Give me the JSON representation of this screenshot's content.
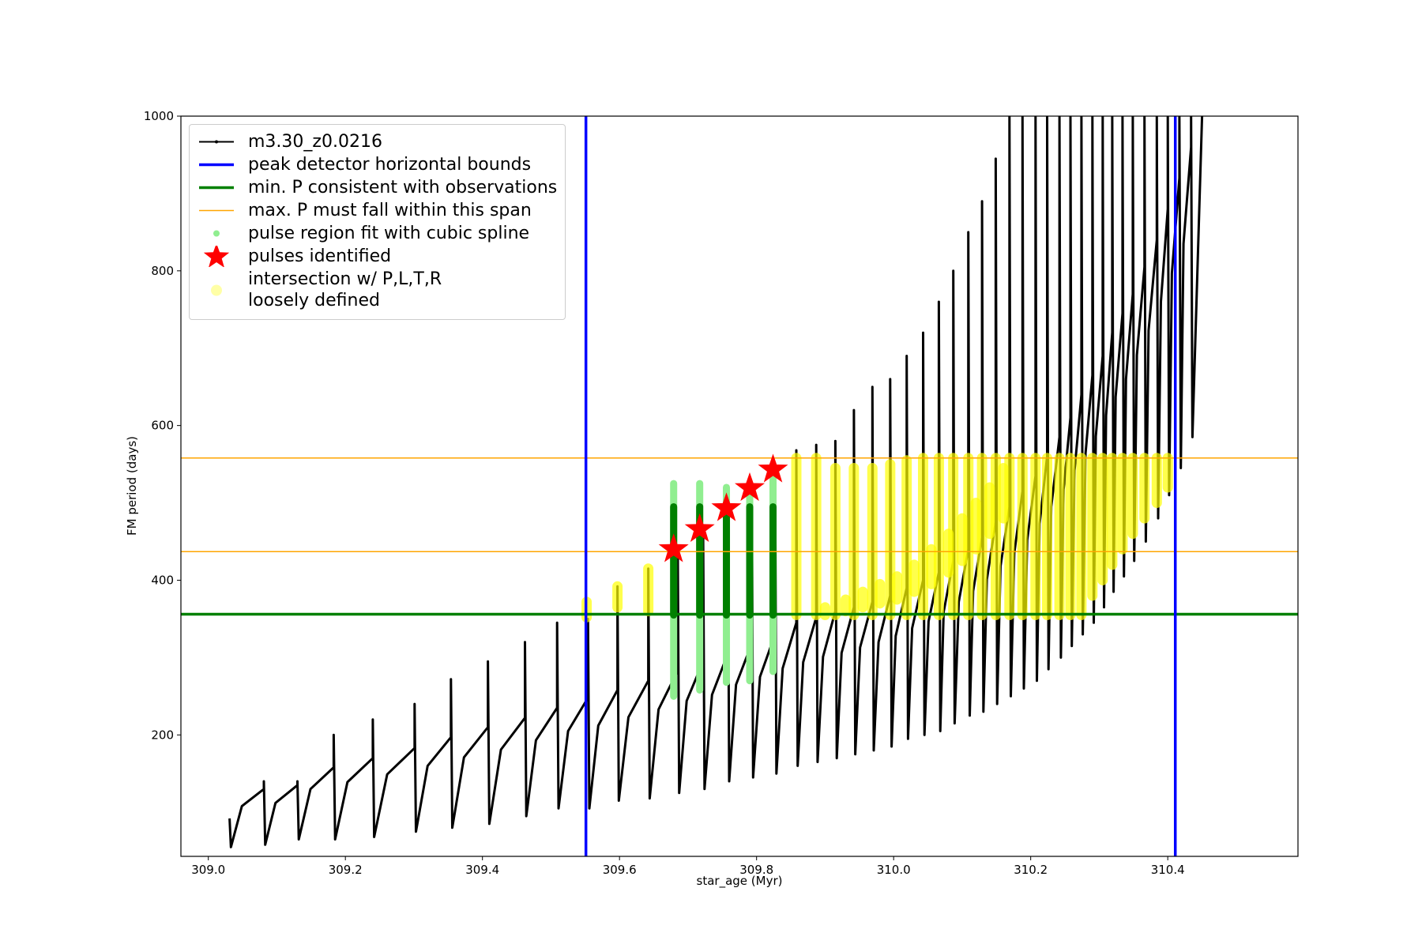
{
  "chart_data": {
    "type": "line",
    "xlabel": "star_age (Myr)",
    "ylabel": "FM period (days)",
    "xlim": [
      308.96,
      310.59
    ],
    "ylim": [
      43,
      1000
    ],
    "xticks": [
      {
        "value": 309,
        "label": "309.0"
      },
      309.2,
      309.4,
      309.6,
      309.8,
      {
        "value": 310,
        "label": "310.0"
      },
      310.2,
      310.4
    ],
    "yticks": [
      200,
      400,
      600,
      800,
      1000
    ],
    "grid": false,
    "legend": "upper left",
    "series": [
      {
        "name": "m3.30_z0.0216",
        "type": "line",
        "color": "#000000",
        "x": [
          309.031,
          309.033,
          309.049,
          309.081,
          309.081,
          309.083,
          309.098,
          309.13,
          309.13,
          309.132,
          309.149,
          309.183,
          309.183,
          309.185,
          309.203,
          309.24,
          309.24,
          309.242,
          309.261,
          309.301,
          309.301,
          309.303,
          309.32,
          309.354,
          309.354,
          309.356,
          309.373,
          309.408,
          309.408,
          309.41,
          309.427,
          309.462,
          309.462,
          309.464,
          309.478,
          309.509,
          309.509,
          309.511,
          309.525,
          309.554,
          309.554,
          309.556,
          309.569,
          309.597,
          309.597,
          309.599,
          309.613,
          309.642,
          309.642,
          309.644,
          309.657,
          309.685,
          309.685,
          309.687,
          309.698,
          309.722,
          309.722,
          309.724,
          309.735,
          309.758,
          309.758,
          309.76,
          309.77,
          309.793,
          309.793,
          309.795,
          309.805,
          309.827,
          309.827,
          309.829,
          309.838,
          309.858,
          309.858,
          309.86,
          309.868,
          309.887,
          309.887,
          309.889,
          309.897,
          309.915,
          309.915,
          309.917,
          309.924,
          309.942,
          309.942,
          309.944,
          309.951,
          309.969,
          309.969,
          309.971,
          309.978,
          309.995,
          309.995,
          309.997,
          310.003,
          310.019,
          310.019,
          310.021,
          310.027,
          310.043,
          310.043,
          310.045,
          310.051,
          310.066,
          310.066,
          310.068,
          310.073,
          310.087,
          310.087,
          310.089,
          310.095,
          310.109,
          310.109,
          310.111,
          310.116,
          310.129,
          310.129,
          310.131,
          310.136,
          310.149,
          310.149,
          310.151,
          310.156,
          310.169,
          310.169,
          310.171,
          310.176,
          310.188,
          310.188,
          310.19,
          310.195,
          310.207,
          310.207,
          310.209,
          310.213,
          310.224,
          310.224,
          310.226,
          310.23,
          310.242,
          310.242,
          310.244,
          310.248,
          310.258,
          310.258,
          310.26,
          310.264,
          310.274,
          310.274,
          310.276,
          310.28,
          310.29,
          310.29,
          310.292,
          310.295,
          310.305,
          310.305,
          310.307,
          310.31,
          310.319,
          310.319,
          310.321,
          310.324,
          310.334,
          310.334,
          310.336,
          310.339,
          310.349,
          310.349,
          310.351,
          310.355,
          310.366,
          310.366,
          310.368,
          310.372,
          310.384,
          310.384,
          310.386,
          310.39,
          310.4,
          310.4,
          310.402,
          310.406,
          310.417,
          310.417,
          310.419,
          310.423,
          310.434,
          310.434,
          310.436,
          310.45
        ],
        "values": [
          92,
          55,
          108,
          130,
          140,
          58,
          112,
          135,
          140,
          65,
          130,
          158,
          200,
          65,
          139,
          170,
          220,
          68,
          149,
          183,
          240,
          75,
          160,
          197,
          272,
          80,
          171,
          210,
          295,
          85,
          181,
          222,
          320,
          95,
          193,
          235,
          345,
          105,
          205,
          248,
          350,
          105,
          212,
          258,
          392,
          115,
          223,
          270,
          415,
          118,
          233,
          283,
          440,
          125,
          244,
          295,
          470,
          130,
          252,
          305,
          495,
          140,
          265,
          318,
          520,
          145,
          275,
          330,
          545,
          150,
          286,
          345,
          568,
          160,
          294,
          352,
          575,
          165,
          301,
          360,
          580,
          170,
          306,
          365,
          620,
          175,
          313,
          372,
          650,
          180,
          320,
          380,
          660,
          185,
          328,
          390,
          690,
          195,
          338,
          400,
          720,
          200,
          347,
          410,
          760,
          205,
          359,
          425,
          800,
          215,
          372,
          440,
          850,
          225,
          386,
          455,
          890,
          230,
          401,
          475,
          945,
          240,
          418,
          495,
          1000,
          250,
          435,
          515,
          1000,
          260,
          452,
          535,
          1000,
          270,
          473,
          560,
          1000,
          285,
          495,
          585,
          1000,
          300,
          517,
          610,
          1000,
          315,
          542,
          640,
          1000,
          330,
          564,
          665,
          1000,
          345,
          586,
          690,
          1000,
          365,
          613,
          720,
          1000,
          385,
          637,
          745,
          1000,
          405,
          660,
          770,
          1000,
          425,
          691,
          805,
          1000,
          450,
          723,
          840,
          1000,
          480,
          760,
          880,
          1000,
          510,
          797,
          920,
          1000,
          545,
          835,
          960,
          1000,
          585,
          1000
        ]
      },
      {
        "name": "peak detector horizontal bounds",
        "type": "vline",
        "color": "#0000ff",
        "linewidth": 3.5,
        "values": [
          309.551,
          310.411
        ]
      },
      {
        "name": "min. P consistent with observations",
        "type": "hline",
        "color": "#008000",
        "linewidth": 3.5,
        "values": [
          356
        ]
      },
      {
        "name": "max. P must fall within this span",
        "type": "hline",
        "color": "#ffa500",
        "linewidth": 1.5,
        "values": [
          558,
          437
        ]
      },
      {
        "name": "pulse region fit with cubic spline",
        "type": "range",
        "color": "#90ee90",
        "x": [
          309.679,
          309.717,
          309.756,
          309.79,
          309.824
        ],
        "low": [
          250,
          258,
          268,
          270,
          282
        ],
        "high": [
          525,
          525,
          520,
          510,
          545
        ]
      },
      {
        "name": "pulses identified",
        "type": "star",
        "color": "#ff0000",
        "x": [
          309.679,
          309.717,
          309.756,
          309.79,
          309.824
        ],
        "values": [
          440,
          466,
          493,
          519,
          543
        ]
      },
      {
        "name": "intersection w/ P,L,T,R\nloosely defined",
        "type": "range",
        "color": "#ffff00",
        "x": [
          309.552,
          309.597,
          309.642,
          309.858,
          309.887,
          309.9,
          309.915,
          309.93,
          309.942,
          309.955,
          309.969,
          309.98,
          309.995,
          310.005,
          310.019,
          310.03,
          310.043,
          310.055,
          310.066,
          310.08,
          310.087,
          310.1,
          310.109,
          310.12,
          310.129,
          310.14,
          310.149,
          310.16,
          310.169,
          310.188,
          310.207,
          310.224,
          310.242,
          310.258,
          310.274,
          310.29,
          310.305,
          310.319,
          310.334,
          310.349,
          310.366,
          310.384,
          310.4
        ],
        "low": [
          352,
          365,
          360,
          355,
          355,
          355,
          355,
          360,
          355,
          365,
          355,
          370,
          355,
          375,
          355,
          385,
          355,
          395,
          355,
          410,
          355,
          425,
          355,
          440,
          355,
          460,
          355,
          480,
          355,
          355,
          355,
          355,
          355,
          355,
          355,
          380,
          400,
          420,
          440,
          460,
          480,
          500,
          520
        ],
        "high": [
          372,
          392,
          415,
          558,
          558,
          365,
          545,
          375,
          545,
          385,
          545,
          395,
          550,
          405,
          555,
          420,
          558,
          440,
          558,
          460,
          558,
          480,
          558,
          500,
          558,
          520,
          558,
          545,
          558,
          558,
          558,
          558,
          558,
          558,
          558,
          558,
          558,
          558,
          558,
          558,
          558,
          558,
          558
        ]
      },
      {
        "type": "range",
        "color": "#008000",
        "x": [
          309.679,
          309.717,
          309.756,
          309.79,
          309.824
        ],
        "low": [
          355,
          355,
          355,
          355,
          355
        ],
        "high": [
          495,
          495,
          495,
          495,
          495
        ]
      }
    ]
  }
}
